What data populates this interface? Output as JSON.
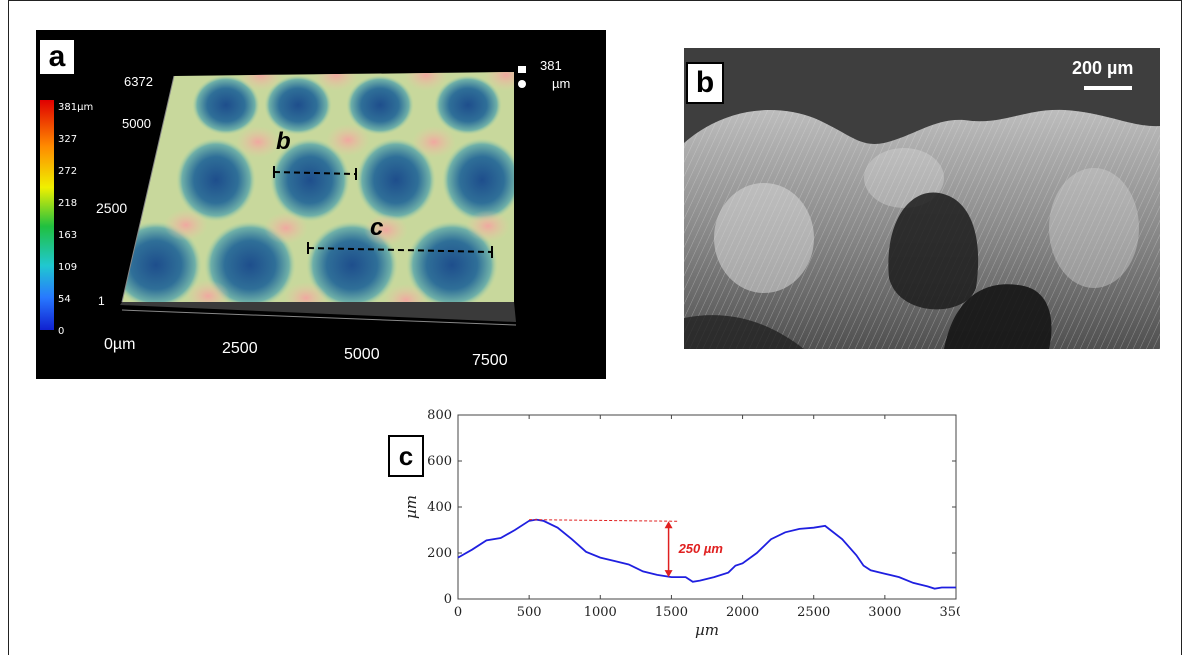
{
  "figure": {
    "panel_a": {
      "letter": "a",
      "z_top_value": "381",
      "z_top_unit": "µm",
      "colorbar_labels": [
        "381µm",
        "327",
        "272",
        "218",
        "163",
        "109",
        "54",
        "0"
      ],
      "y_axis_labels": [
        "6372",
        "5000",
        "2500",
        "1"
      ],
      "x_axis_labels": [
        "0µm",
        "2500",
        "5000",
        "7500"
      ],
      "marker_b": "b",
      "marker_c": "c"
    },
    "panel_b": {
      "letter": "b",
      "scale_bar": "200 µm"
    },
    "panel_c": {
      "letter": "c",
      "annotation": "250 µm",
      "colors": {
        "line": "#1f1fe0",
        "annotation": "#e02020"
      }
    }
  },
  "chart_data": {
    "type": "line",
    "xlabel": "µm",
    "ylabel": "µm",
    "xlim": [
      0,
      3500
    ],
    "ylim": [
      0,
      800
    ],
    "xticks": [
      "0",
      "500",
      "1000",
      "1500",
      "2000",
      "2500",
      "3000",
      "3500"
    ],
    "yticks": [
      "0",
      "200",
      "400",
      "600",
      "800"
    ],
    "series": [
      {
        "x": [
          0,
          100,
          200,
          300,
          400,
          500,
          550,
          600,
          700,
          800,
          900,
          1000,
          1100,
          1200,
          1300,
          1400,
          1500,
          1600,
          1650,
          1700,
          1800,
          1900,
          1950,
          2000,
          2100,
          2200,
          2300,
          2400,
          2500,
          2580,
          2700,
          2800,
          2850,
          2900,
          3000,
          3100,
          3200,
          3300,
          3350,
          3400,
          3500
        ],
        "y": [
          180,
          215,
          255,
          265,
          300,
          340,
          345,
          340,
          310,
          260,
          205,
          180,
          165,
          150,
          120,
          105,
          95,
          95,
          75,
          80,
          95,
          115,
          145,
          155,
          200,
          260,
          290,
          305,
          310,
          318,
          260,
          190,
          145,
          125,
          110,
          95,
          70,
          55,
          45,
          50,
          50
        ]
      }
    ],
    "annotation": {
      "text": "250 µm",
      "dashed_line": {
        "x0": 500,
        "x1": 1550,
        "y0": 345,
        "y1": 338
      },
      "arrow": {
        "x": 1480,
        "y_top": 338,
        "y_bottom": 95
      }
    }
  }
}
